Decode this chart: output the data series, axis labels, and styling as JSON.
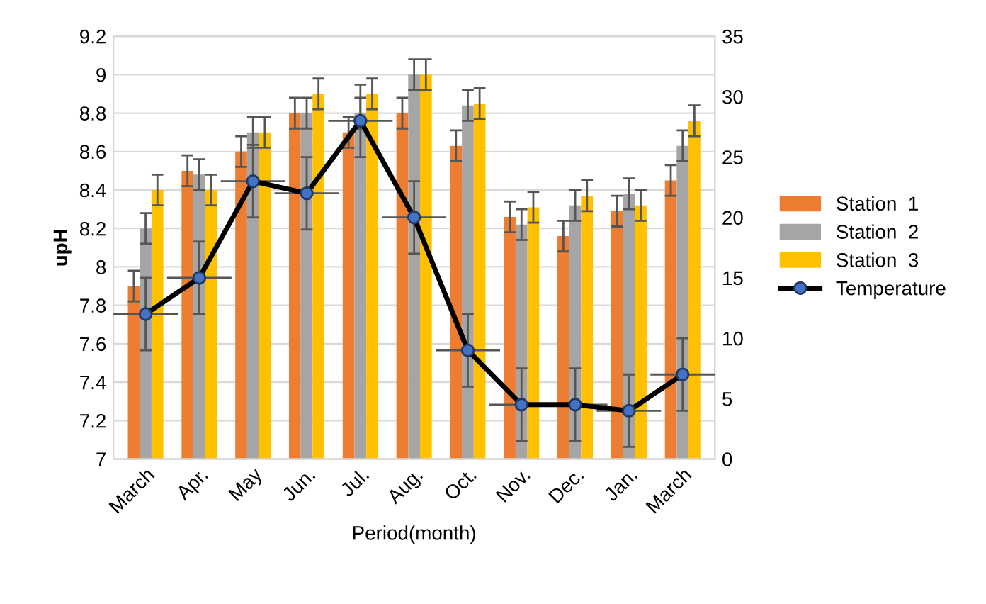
{
  "chart_data": {
    "type": "bar",
    "xlabel": "Period(month)",
    "ylabel": "upH",
    "categories": [
      "March",
      "Apr.",
      "May",
      "Jun.",
      "Jul.",
      "Aug.",
      "Oct.",
      "Nov.",
      "Dec.",
      "Jan.",
      "March"
    ],
    "ylim": [
      7,
      9.2
    ],
    "yticks": [
      7,
      7.2,
      7.4,
      7.6,
      7.8,
      8,
      8.2,
      8.4,
      8.6,
      8.8,
      9,
      9.2
    ],
    "y2lim": [
      0,
      35
    ],
    "y2ticks": [
      0,
      5,
      10,
      15,
      20,
      25,
      30,
      35
    ],
    "grid": "y",
    "legend": "right",
    "series": [
      {
        "name": "Station  1",
        "color": "#ed7d31",
        "values": [
          7.9,
          8.5,
          8.6,
          8.8,
          8.7,
          8.8,
          8.63,
          8.26,
          8.16,
          8.29,
          8.45
        ],
        "errors": [
          0.08,
          0.08,
          0.08,
          0.08,
          0.08,
          0.08,
          0.08,
          0.08,
          0.08,
          0.08,
          0.08
        ]
      },
      {
        "name": "Station  2",
        "color": "#a5a5a5",
        "values": [
          8.2,
          8.48,
          8.7,
          8.8,
          8.8,
          9.0,
          8.84,
          8.22,
          8.32,
          8.38,
          8.63
        ],
        "errors": [
          0.08,
          0.08,
          0.08,
          0.08,
          0.08,
          0.08,
          0.08,
          0.08,
          0.08,
          0.08,
          0.08
        ]
      },
      {
        "name": "Station  3",
        "color": "#ffc000",
        "values": [
          8.4,
          8.4,
          8.7,
          8.9,
          8.9,
          9.0,
          8.85,
          8.31,
          8.37,
          8.32,
          8.76
        ],
        "errors": [
          0.08,
          0.08,
          0.08,
          0.08,
          0.08,
          0.08,
          0.08,
          0.08,
          0.08,
          0.08,
          0.08
        ]
      },
      {
        "name": "Temperature",
        "type": "line",
        "axis": "y2",
        "color": "#000000",
        "marker": "circle",
        "line_style": "solid",
        "values": [
          12,
          15,
          23,
          22,
          28,
          20,
          9,
          4.5,
          4.5,
          4,
          7
        ],
        "errors": [
          3,
          3,
          3,
          3,
          3,
          3,
          3,
          3,
          3,
          3,
          3
        ]
      }
    ]
  }
}
